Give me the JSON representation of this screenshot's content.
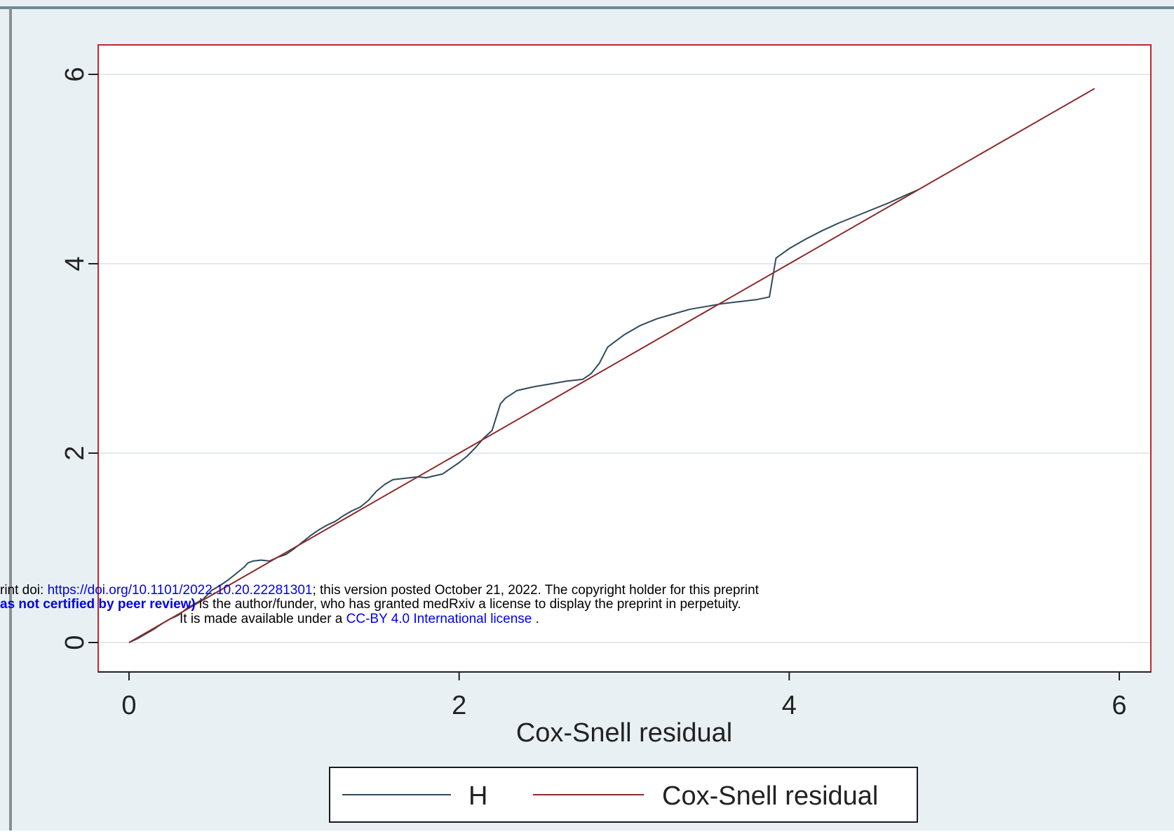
{
  "chart_data": {
    "type": "line",
    "xlabel": "Cox-Snell residual",
    "ylabel": "",
    "xlim": [
      -0.2,
      6.2
    ],
    "ylim": [
      -0.3,
      6.3
    ],
    "x_ticks": [
      0,
      2,
      4,
      6
    ],
    "y_ticks": [
      0,
      2,
      4,
      6
    ],
    "grid": true,
    "legend_position": "bottom",
    "colors": {
      "outer_background": "#e9f0f3",
      "plot_border": "#c0282d",
      "h_series": "#2f4a5c",
      "reference_series": "#8b2b2b",
      "gridline": "#e4e8ea",
      "legend_border": "#1b1b1b"
    },
    "series": [
      {
        "name": "H",
        "x": [
          0.0,
          0.05,
          0.1,
          0.15,
          0.2,
          0.25,
          0.3,
          0.35,
          0.4,
          0.45,
          0.5,
          0.55,
          0.6,
          0.65,
          0.7,
          0.72,
          0.75,
          0.8,
          0.85,
          0.9,
          0.95,
          1.0,
          1.05,
          1.1,
          1.15,
          1.2,
          1.25,
          1.3,
          1.35,
          1.4,
          1.45,
          1.5,
          1.55,
          1.6,
          1.65,
          1.7,
          1.75,
          1.8,
          1.85,
          1.9,
          1.95,
          2.0,
          2.05,
          2.1,
          2.15,
          2.2,
          2.25,
          2.28,
          2.35,
          2.45,
          2.55,
          2.65,
          2.75,
          2.8,
          2.85,
          2.9,
          3.0,
          3.1,
          3.2,
          3.3,
          3.4,
          3.5,
          3.6,
          3.7,
          3.8,
          3.88,
          3.92,
          4.0,
          4.1,
          4.2,
          4.3,
          4.4,
          4.5,
          4.6,
          4.7,
          4.78
        ],
        "values": [
          0.0,
          0.04,
          0.09,
          0.14,
          0.2,
          0.25,
          0.29,
          0.36,
          0.41,
          0.46,
          0.55,
          0.6,
          0.66,
          0.73,
          0.8,
          0.84,
          0.86,
          0.87,
          0.86,
          0.9,
          0.93,
          0.99,
          1.06,
          1.13,
          1.19,
          1.24,
          1.28,
          1.34,
          1.39,
          1.43,
          1.5,
          1.6,
          1.67,
          1.72,
          1.73,
          1.74,
          1.75,
          1.74,
          1.76,
          1.78,
          1.84,
          1.9,
          1.97,
          2.06,
          2.16,
          2.24,
          2.52,
          2.58,
          2.66,
          2.7,
          2.73,
          2.76,
          2.78,
          2.84,
          2.95,
          3.12,
          3.25,
          3.35,
          3.42,
          3.47,
          3.52,
          3.55,
          3.58,
          3.6,
          3.62,
          3.65,
          4.06,
          4.16,
          4.26,
          4.35,
          4.43,
          4.5,
          4.57,
          4.64,
          4.72,
          4.78
        ]
      },
      {
        "name": "Cox-Snell residual",
        "x": [
          0.0,
          5.85
        ],
        "values": [
          0.0,
          5.85
        ]
      }
    ]
  },
  "overlay": {
    "line1_pre": "rint doi: ",
    "line1_link": "https://doi.org/10.1101/2022.10.20.22281301",
    "line1_post": "; this version posted October 21, 2022. The copyright holder for this preprint",
    "line2_bold": "as not certified by peer review)",
    "line2_post": " is the author/funder, who has granted medRxiv a license to display the preprint in perpetuity.",
    "line3_pre": "It is made available under a ",
    "line3_link": "CC-BY 4.0 International license",
    "line3_post": " ."
  }
}
